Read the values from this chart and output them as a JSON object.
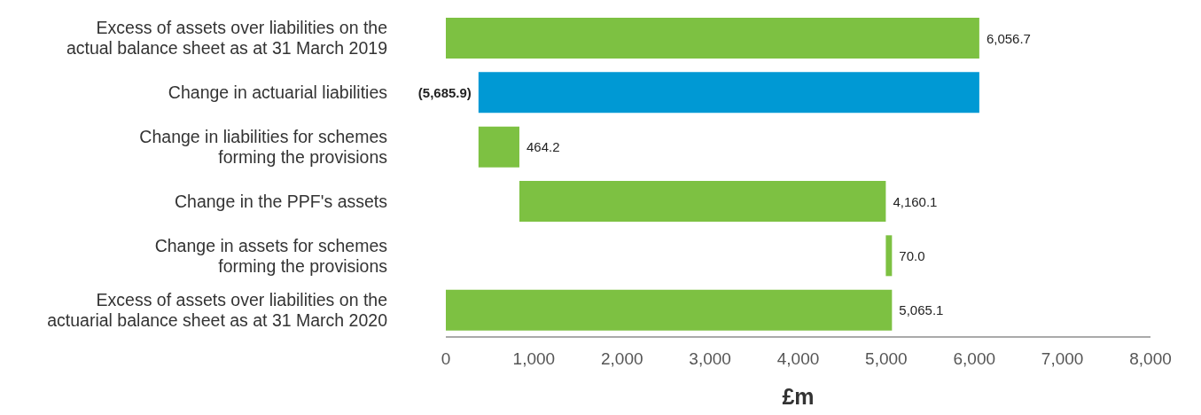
{
  "chart_data": {
    "type": "bar",
    "orientation": "horizontal",
    "categories": [
      "Excess of assets over liabilities on the\nactual balance sheet as at 31 March 2019",
      "Change in actuarial liabilities",
      "Change in liabilities for schemes\nforming the provisions",
      "Change in the PPF's assets",
      "Change in assets for schemes\nforming the provisions",
      "Excess of assets over liabilities on the\nactuarial balance sheet as at 31 March 2020"
    ],
    "values": [
      6056.7,
      -5685.9,
      464.2,
      4160.1,
      70.0,
      5065.1
    ],
    "base": [
      0,
      6056.7,
      370.8,
      835.0,
      4995.1,
      0
    ],
    "colors": [
      "#7dc142",
      "#0099d4",
      "#7dc142",
      "#7dc142",
      "#7dc142",
      "#7dc142"
    ],
    "value_labels": [
      "6,056.7",
      "(5,685.9)",
      "464.2",
      "4,160.1",
      "70.0",
      "5,065.1"
    ],
    "xlim": [
      0,
      8000
    ],
    "xticks": [
      0,
      {
        "value": 1000,
        "label": "1,000"
      },
      {
        "value": 2000,
        "label": "2,000"
      },
      {
        "value": 3000,
        "label": "3,000"
      },
      {
        "value": 4000,
        "label": "4,000"
      },
      {
        "value": 5000,
        "label": "5,000"
      },
      {
        "value": 6000,
        "label": "6,000"
      },
      {
        "value": 7000,
        "label": "7,000"
      },
      {
        "value": 8000,
        "label": "8,000"
      }
    ],
    "xlabel": "£m",
    "grid": false,
    "legend": false
  }
}
